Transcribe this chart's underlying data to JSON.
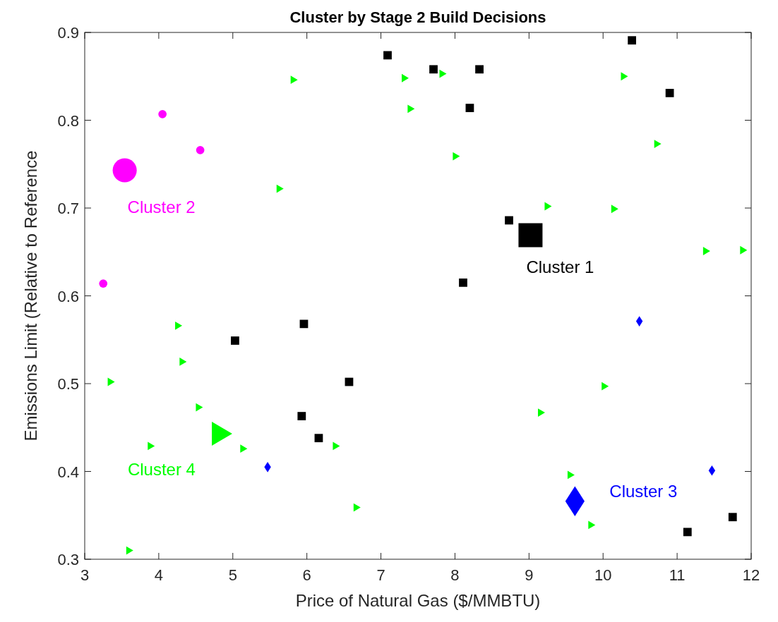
{
  "chart_data": {
    "type": "bubble",
    "title": "Cluster by Stage 2 Build Decisions",
    "xlabel": "Price of Natural Gas ($/MMBTU)",
    "ylabel": "Emissions Limit (Relative to Reference",
    "xlim": [
      3,
      12
    ],
    "xticks": [
      3,
      4,
      5,
      6,
      7,
      8,
      9,
      10,
      11,
      12
    ],
    "ylim": [
      0.3,
      0.9
    ],
    "yticks": [
      0.3,
      0.4,
      0.5,
      0.6,
      0.7,
      0.8,
      0.9
    ],
    "grid": false,
    "series": [
      {
        "name": "Cluster 1",
        "color": "#000000",
        "marker": "square",
        "x": [
          7.09,
          7.71,
          8.33,
          8.2,
          10.39,
          10.9,
          8.73,
          9.02,
          8.11,
          5.96,
          5.03,
          6.57,
          5.93,
          6.16,
          11.14,
          11.75
        ],
        "values": [
          0.874,
          0.858,
          0.858,
          0.814,
          0.891,
          0.831,
          0.686,
          0.669,
          0.615,
          0.568,
          0.549,
          0.502,
          0.463,
          0.438,
          0.331,
          0.348
        ],
        "sizes": [
          0.12,
          0.12,
          0.12,
          0.12,
          0.12,
          0.12,
          0.12,
          1,
          0.12,
          0.12,
          0.12,
          0.12,
          0.12,
          0.12,
          0.12,
          0.12
        ]
      },
      {
        "name": "Cluster 2",
        "color": "#ff00ff",
        "marker": "circle",
        "x": [
          3.25,
          4.05,
          4.56,
          3.54
        ],
        "values": [
          0.614,
          0.807,
          0.766,
          0.743
        ],
        "sizes": [
          0.094,
          0.094,
          0.094,
          0.79
        ]
      },
      {
        "name": "Cluster 3",
        "color": "#0000ff",
        "marker": "diamond",
        "x": [
          10.49,
          11.47,
          5.47,
          9.62
        ],
        "values": [
          0.571,
          0.401,
          0.405,
          0.366
        ],
        "sizes": [
          0.06,
          0.06,
          0.06,
          0.5
        ]
      },
      {
        "name": "Cluster 4",
        "color": "#00ff00",
        "marker": "triangle",
        "x": [
          5.82,
          7.32,
          7.83,
          7.4,
          8.01,
          10.28,
          10.73,
          5.63,
          9.25,
          10.15,
          11.39,
          11.89,
          4.26,
          4.32,
          3.35,
          4.54,
          10.02,
          9.16,
          3.89,
          5.14,
          6.39,
          4.83,
          9.56,
          9.84,
          6.67,
          3.6
        ],
        "values": [
          0.846,
          0.848,
          0.853,
          0.813,
          0.759,
          0.85,
          0.773,
          0.722,
          0.702,
          0.699,
          0.651,
          0.652,
          0.566,
          0.525,
          0.502,
          0.473,
          0.497,
          0.467,
          0.429,
          0.426,
          0.429,
          0.443,
          0.396,
          0.339,
          0.359,
          0.31
        ],
        "sizes": [
          0.051,
          0.051,
          0.051,
          0.051,
          0.051,
          0.051,
          0.051,
          0.051,
          0.051,
          0.051,
          0.051,
          0.051,
          0.051,
          0.051,
          0.051,
          0.051,
          0.051,
          0.051,
          0.051,
          0.051,
          0.051,
          0.425,
          0.051,
          0.051,
          0.051,
          0.051
        ]
      }
    ]
  }
}
